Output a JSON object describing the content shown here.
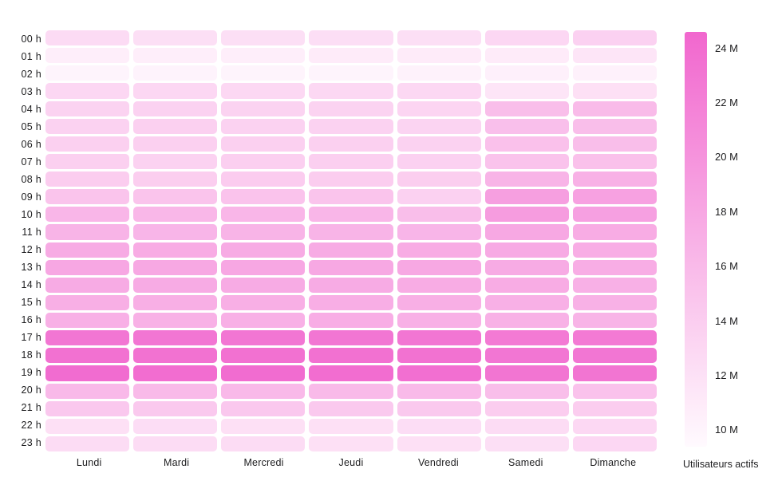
{
  "chart_data": {
    "type": "heatmap",
    "x_categories": [
      "Lundi",
      "Mardi",
      "Mercredi",
      "Jeudi",
      "Vendredi",
      "Samedi",
      "Dimanche"
    ],
    "y_categories": [
      "00 h",
      "01 h",
      "02 h",
      "03 h",
      "04 h",
      "05 h",
      "06 h",
      "07 h",
      "08 h",
      "09 h",
      "10 h",
      "11 h",
      "12 h",
      "13 h",
      "14 h",
      "15 h",
      "16 h",
      "17 h",
      "18 h",
      "19 h",
      "20 h",
      "21 h",
      "22 h",
      "23 h"
    ],
    "values_unit": "millions of active users",
    "values": [
      [
        12.6,
        12.2,
        12.2,
        12.3,
        12.2,
        13.0,
        13.6
      ],
      [
        10.6,
        10.6,
        10.6,
        10.9,
        11.0,
        10.9,
        11.6
      ],
      [
        10.0,
        10.1,
        10.0,
        10.0,
        10.2,
        10.4,
        10.3
      ],
      [
        13.0,
        13.0,
        12.9,
        12.9,
        12.9,
        11.6,
        12.1
      ],
      [
        13.4,
        13.5,
        13.4,
        13.4,
        13.2,
        15.6,
        15.9
      ],
      [
        13.5,
        13.7,
        13.5,
        13.5,
        13.3,
        15.5,
        15.6
      ],
      [
        13.7,
        13.7,
        13.7,
        13.7,
        13.5,
        15.3,
        15.6
      ],
      [
        13.7,
        13.5,
        13.8,
        13.8,
        13.6,
        15.1,
        15.3
      ],
      [
        14.1,
        14.0,
        14.2,
        14.1,
        14.0,
        16.6,
        16.9
      ],
      [
        15.0,
        15.0,
        15.1,
        15.0,
        13.6,
        18.8,
        18.6
      ],
      [
        16.4,
        16.3,
        16.4,
        16.4,
        15.6,
        19.1,
        18.7
      ],
      [
        16.6,
        16.5,
        16.6,
        16.6,
        16.5,
        17.9,
        17.5
      ],
      [
        17.6,
        17.5,
        17.6,
        17.6,
        17.5,
        17.7,
        17.4
      ],
      [
        18.0,
        17.9,
        18.0,
        17.9,
        17.9,
        17.6,
        17.4
      ],
      [
        17.6,
        17.6,
        17.6,
        17.6,
        17.5,
        17.5,
        17.1
      ],
      [
        17.2,
        17.2,
        17.2,
        17.3,
        17.2,
        17.1,
        16.9
      ],
      [
        17.1,
        17.0,
        17.1,
        17.4,
        17.1,
        17.0,
        16.6
      ],
      [
        23.0,
        23.0,
        23.0,
        23.1,
        23.0,
        22.6,
        22.6
      ],
      [
        23.6,
        23.5,
        23.6,
        23.6,
        23.5,
        23.1,
        23.1
      ],
      [
        24.1,
        24.0,
        24.1,
        24.0,
        23.8,
        23.2,
        23.2
      ],
      [
        16.1,
        16.0,
        16.1,
        16.0,
        16.0,
        15.6,
        15.2
      ],
      [
        14.6,
        14.5,
        14.6,
        14.5,
        14.5,
        14.1,
        14.1
      ],
      [
        12.1,
        12.4,
        12.1,
        12.1,
        12.4,
        12.5,
        12.9
      ],
      [
        12.5,
        12.5,
        12.5,
        12.1,
        12.1,
        12.2,
        13.0
      ]
    ],
    "colorbar": {
      "title": "Utilisateurs actifs",
      "ticks": [
        "24 M",
        "22 M",
        "20 M",
        "18 M",
        "16 M",
        "14 M",
        "12 M",
        "10 M"
      ],
      "tick_values": [
        24,
        22,
        20,
        18,
        16,
        14,
        12,
        10
      ],
      "min_value": 9.4,
      "max_value": 24.6,
      "color_low": "#fffafe",
      "color_high": "#f167ce"
    },
    "grid": "off",
    "legend_position": "right"
  }
}
